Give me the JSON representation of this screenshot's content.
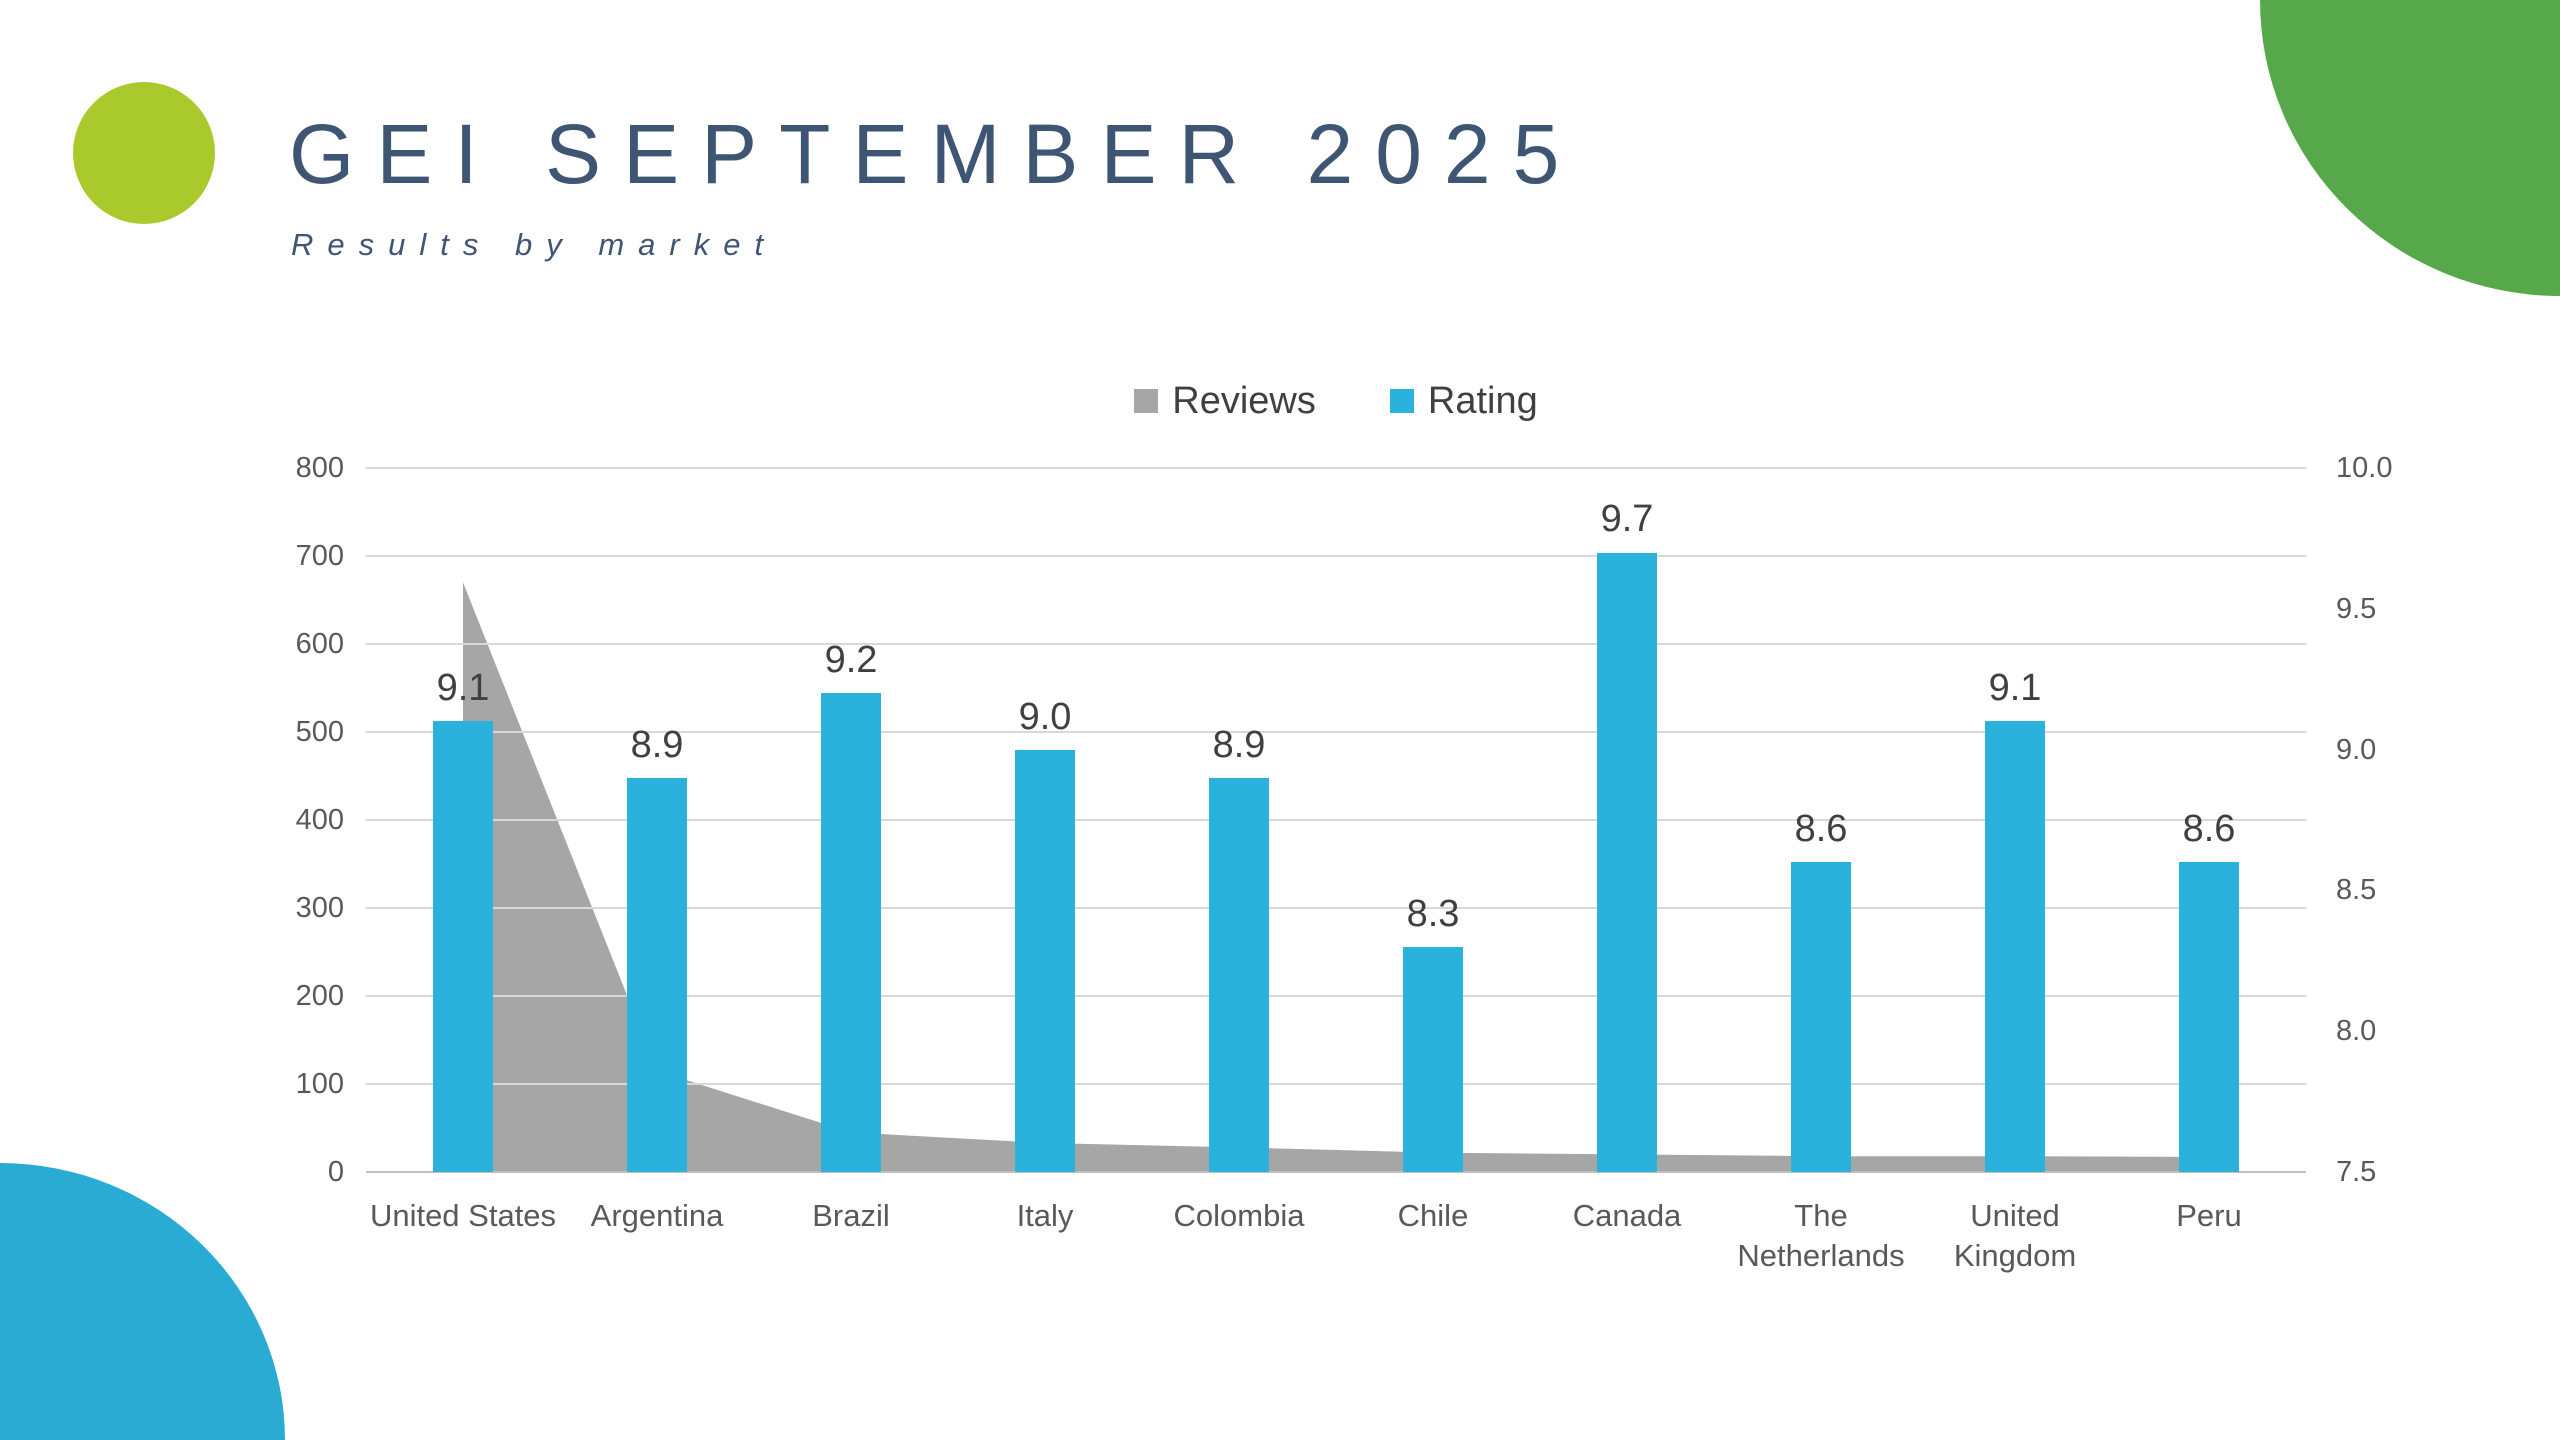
{
  "header": {
    "title": "GEI SEPTEMBER 2025",
    "subtitle": "Results by market",
    "title_color": "#3e5574"
  },
  "decor": {
    "accent_circle_color": "#a9c92c",
    "top_right_shape_color": "#57a84a",
    "bottom_left_shape_color": "#29abd4"
  },
  "legend": {
    "items": [
      {
        "label": "Reviews",
        "color": "#a6a6a6"
      },
      {
        "label": "Rating",
        "color": "#2ab2dc"
      }
    ]
  },
  "chart_data": {
    "type": "combo",
    "title": "",
    "categories": [
      "United States",
      "Argentina",
      "Brazil",
      "Italy",
      "Colombia",
      "Chile",
      "Canada",
      "The Netherlands",
      "United Kingdom",
      "Peru"
    ],
    "category_lines": [
      [
        "United States"
      ],
      [
        "Argentina"
      ],
      [
        "Brazil"
      ],
      [
        "Italy"
      ],
      [
        "Colombia"
      ],
      [
        "Chile"
      ],
      [
        "Canada"
      ],
      [
        "The",
        "Netherlands"
      ],
      [
        "United",
        "Kingdom"
      ],
      [
        "Peru"
      ]
    ],
    "series": [
      {
        "name": "Reviews",
        "type": "area",
        "axis": "left",
        "color": "#a6a6a6",
        "values": [
          670,
          115,
          45,
          33,
          28,
          22,
          20,
          18,
          18,
          17
        ]
      },
      {
        "name": "Rating",
        "type": "bar",
        "axis": "right",
        "color": "#2ab2dc",
        "values": [
          9.1,
          8.9,
          9.2,
          9.0,
          8.9,
          8.3,
          9.7,
          8.6,
          9.1,
          8.6
        ],
        "labels": [
          "9.1",
          "8.9",
          "9.2",
          "9.0",
          "8.9",
          "8.3",
          "9.7",
          "8.6",
          "9.1",
          "8.6"
        ]
      }
    ],
    "left_axis": {
      "min": 0,
      "max": 800,
      "step": 100,
      "ticks_top_to_bottom": [
        "800",
        "700",
        "600",
        "500",
        "400",
        "300",
        "200",
        "100",
        "0"
      ]
    },
    "right_axis": {
      "min": 7.5,
      "max": 10.0,
      "step": 0.5,
      "ticks_top_to_bottom": [
        "10.0",
        "9.5",
        "9.0",
        "8.5",
        "8.0",
        "7.5"
      ]
    },
    "grid": true,
    "gridline_color": "#d9d9d9",
    "baseline_color": "#bfbfbf",
    "legend_position": "top",
    "label_color": "#404040",
    "tick_color": "#595959"
  }
}
